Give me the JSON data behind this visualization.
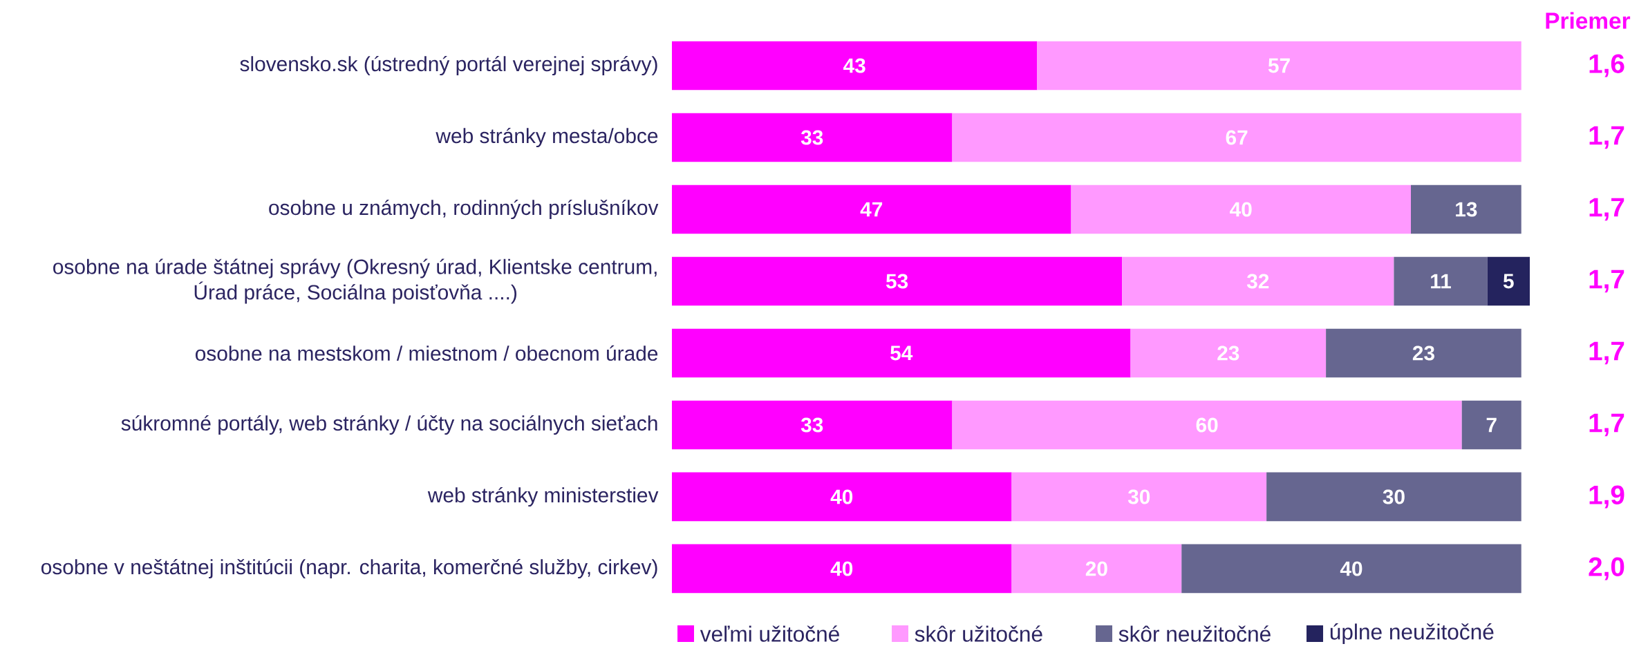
{
  "chart_data": {
    "type": "bar",
    "orientation": "horizontal",
    "stacked": true,
    "data_labels": true,
    "legend": "bottom",
    "categories": [
      "slovensko.sk (ústredný portál verejnej správy)",
      "web stránky mesta/obce",
      "osobne u známych, rodinných príslušníkov",
      "osobne na úrade štátnej správy (Okresný úrad, Klientske centrum, Úrad práce, Sociálna poisťovňa ....)",
      "osobne na mestskom / miestnom / obecnom úrade",
      "súkromné portály, web stránky / účty na sociálnych sieťach",
      "web stránky ministerstiev",
      "osobne v neštátnej inštitúcii (napr. charita, komerčné služby, cirkev)"
    ],
    "xlim": [
      0,
      101
    ],
    "series": [
      {
        "name": "veľmi užitočné",
        "color": "#ff00ff",
        "values": [
          43,
          33,
          47,
          53,
          54,
          33,
          40,
          40
        ]
      },
      {
        "name": "skôr užitočné",
        "color": "#ff99ff",
        "values": [
          57,
          67,
          40,
          32,
          23,
          60,
          30,
          20
        ]
      },
      {
        "name": "skôr neužitočné",
        "color": "#666690",
        "values": [
          null,
          null,
          13,
          11,
          23,
          7,
          30,
          40
        ]
      },
      {
        "name": "úplne neužitočné",
        "color": "#24235e",
        "values": [
          null,
          null,
          null,
          5,
          null,
          null,
          null,
          null
        ]
      }
    ],
    "annotations": [
      "Priemer",
      "1,6",
      "1,7",
      "1,7",
      "1,7",
      "1,7",
      "1,7",
      "1,9",
      "2,0"
    ]
  }
}
